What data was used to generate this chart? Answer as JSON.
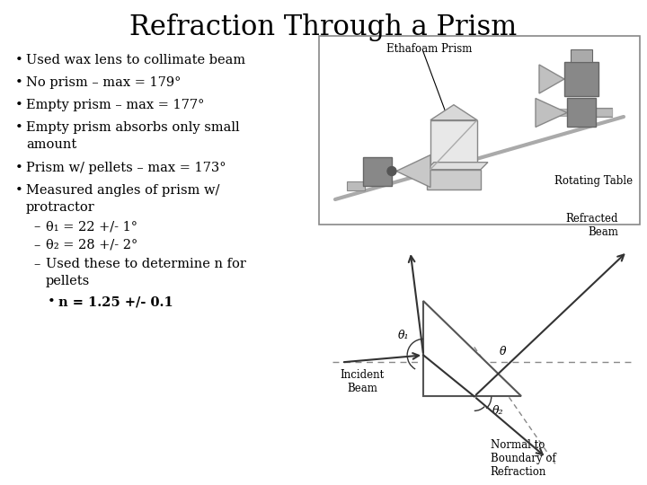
{
  "title": "Refraction Through a Prism",
  "title_fontsize": 22,
  "background_color": "#ffffff",
  "text_color": "#000000",
  "bullet_points": [
    "Used wax lens to collimate beam",
    "No prism – max = 179°",
    "Empty prism – max = 177°",
    "Empty prism absorbs only small\namount",
    "Prism w/ pellets – max = 173°",
    "Measured angles of prism w/\nprotractor"
  ],
  "sub_bullets": [
    "θ₁ = 22 +/- 1°",
    "θ₂ = 28 +/- 2°",
    "Used these to determine n for\npellets"
  ],
  "sub_sub_bullet": "n = 1.25 +/- 0.1",
  "diagram1_label_top": "Ethafoam Prism",
  "diagram1_label_bottom": "Rotating Table",
  "diagram2_label_refracted": "Refracted\nBeam",
  "diagram2_label_incident": "Incident\nBeam",
  "diagram2_label_normal": "Normal to\nBoundary of\nRefraction",
  "diagram2_theta1": "θ₁",
  "diagram2_theta2": "θ₂",
  "diagram2_theta": "θ"
}
